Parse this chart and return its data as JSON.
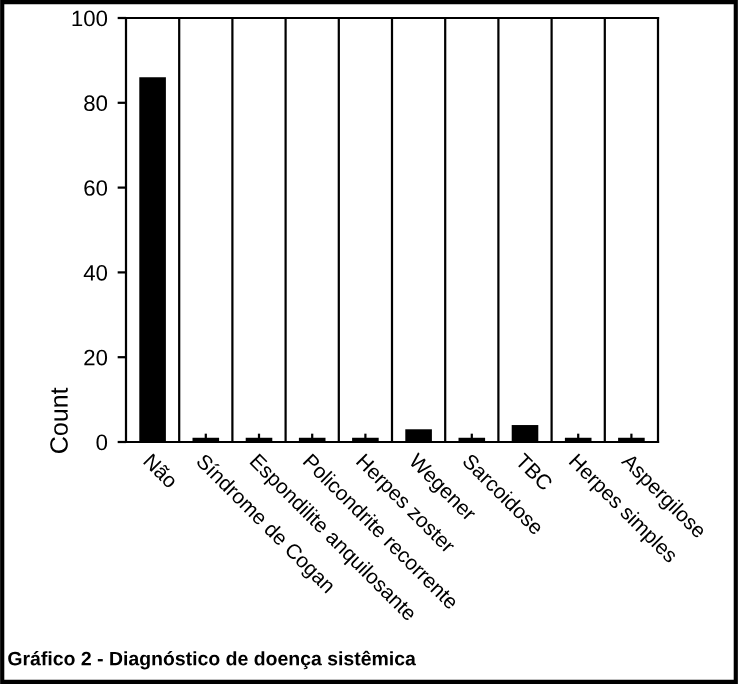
{
  "chart_data": {
    "type": "bar",
    "ylabel": "Count",
    "categories": [
      "Não",
      "Síndrome de Cogan",
      "Espondilite anquilosante",
      "Policondrite recorrente",
      "Herpes zoster",
      "Wegener",
      "Sarcoidose",
      "TBC",
      "Herpes simples",
      "Aspergilose"
    ],
    "values": [
      86,
      1,
      1,
      1,
      1,
      3,
      1,
      4,
      1,
      1
    ],
    "color": "#000000",
    "ylim": [
      0,
      100
    ],
    "yticks": [
      0,
      20,
      40,
      60,
      80,
      100
    ],
    "grid": "x",
    "legend": false,
    "annotations": [
      "Gráfico 2 - Diagnóstico de doença sistêmica"
    ]
  }
}
